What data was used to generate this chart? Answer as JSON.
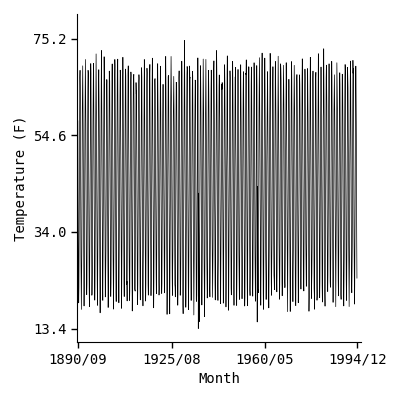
{
  "title": "",
  "xlabel": "Month",
  "ylabel": "Temperature (F)",
  "x_tick_labels": [
    "1890/09",
    "1925/08",
    "1960/05",
    "1994/12"
  ],
  "y_tick_values": [
    13.4,
    34.0,
    54.6,
    75.2
  ],
  "y_tick_labels": [
    "13.4",
    "34.0",
    "54.6",
    "75.2"
  ],
  "start_year": 1890,
  "start_month": 9,
  "end_year": 1994,
  "end_month": 12,
  "line_color": "#000000",
  "line_width": 0.5,
  "bg_color": "#ffffff",
  "ylim": [
    10.5,
    80.5
  ],
  "xlim_start": 1890.5,
  "xlim_end": 1996.5,
  "mean_temp": 44.3,
  "amp": 25.0,
  "noise_std": 1.8,
  "font_family": "monospace",
  "font_size": 10,
  "figsize": [
    4.0,
    4.0
  ],
  "dpi": 100
}
